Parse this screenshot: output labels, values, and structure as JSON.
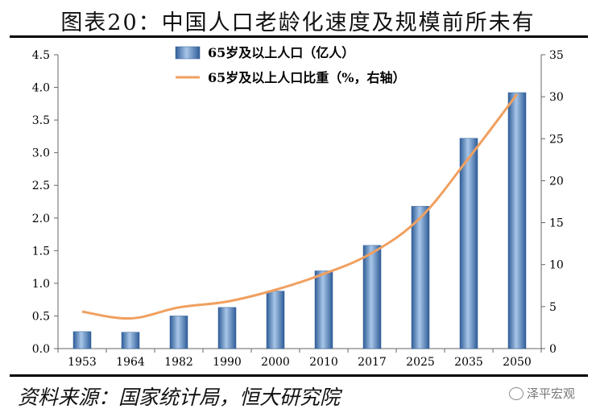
{
  "header": {
    "title": "图表20：中国人口老龄化速度及规模前所未有"
  },
  "footer": {
    "source": "资料来源：国家统计局，恒大研究院",
    "brand": "泽平宏观"
  },
  "chart_data": {
    "type": "bar",
    "categories": [
      "1953",
      "1964",
      "1982",
      "1990",
      "2000",
      "2010",
      "2017",
      "2025",
      "2035",
      "2050"
    ],
    "series": [
      {
        "name": "65岁及以上人口（亿人）",
        "type": "bar",
        "axis": "left",
        "values": [
          0.26,
          0.25,
          0.5,
          0.63,
          0.88,
          1.19,
          1.58,
          2.18,
          3.22,
          3.92
        ]
      },
      {
        "name": "65岁及以上人口比重（%，右轴）",
        "type": "line",
        "axis": "right",
        "values": [
          4.4,
          3.6,
          4.9,
          5.6,
          7.0,
          8.9,
          11.4,
          15.6,
          22.7,
          30.3
        ]
      }
    ],
    "ylim_left": [
      0,
      4.5
    ],
    "yticks_left": [
      "0.0",
      "0.5",
      "1.0",
      "1.5",
      "2.0",
      "2.5",
      "3.0",
      "3.5",
      "4.0",
      "4.5"
    ],
    "ylim_right": [
      0,
      35
    ],
    "yticks_right": [
      "0",
      "5",
      "10",
      "15",
      "20",
      "25",
      "30",
      "35"
    ],
    "legend_position": "top-center",
    "grid": false,
    "colors": {
      "bar": "#3f6fae",
      "bar_light": "#9ebde0",
      "line": "#f0a060"
    }
  }
}
